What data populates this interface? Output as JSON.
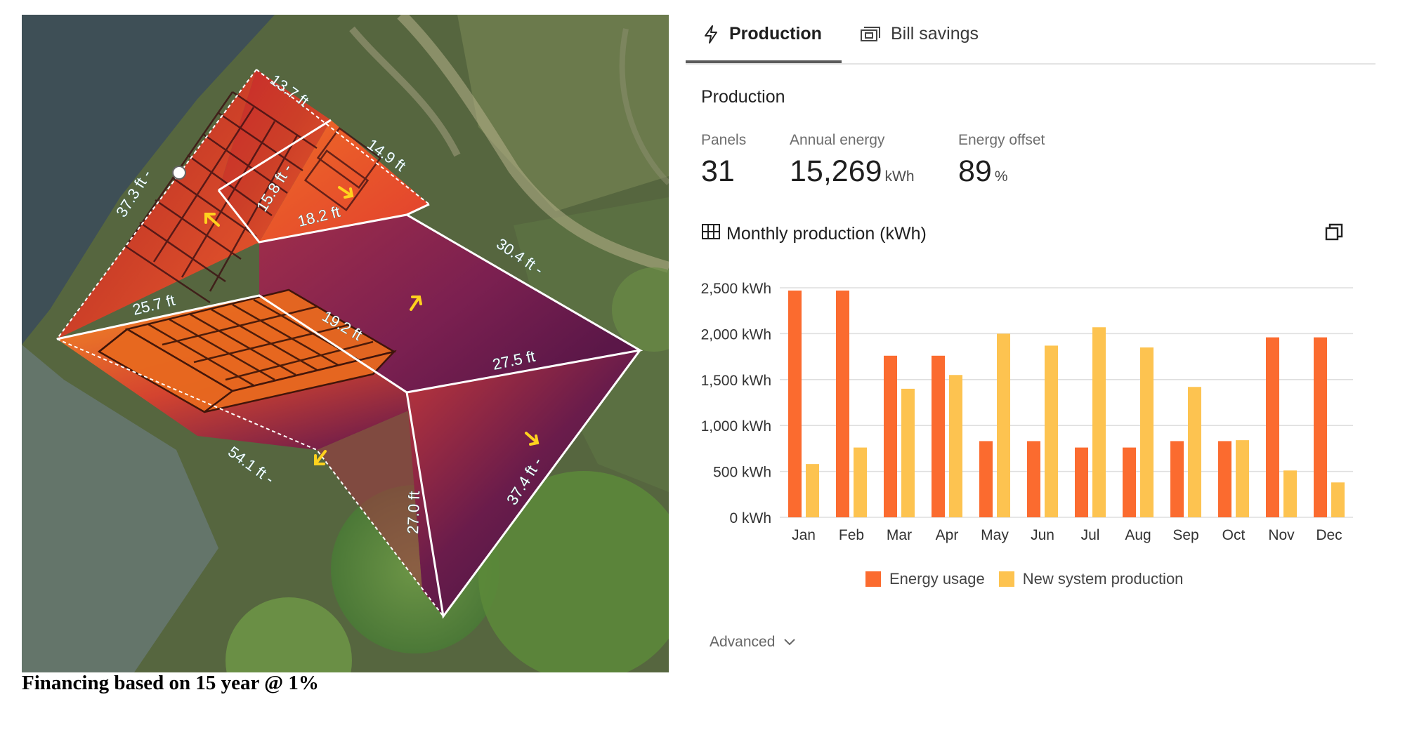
{
  "map": {
    "measurements": [
      "13.7 ft",
      "14.9 ft",
      "37.3 ft -",
      "15.8 ft -",
      "18.2 ft",
      "25.7 ft",
      "30.4 ft -",
      "19.2 ft",
      "27.5 ft",
      "54.1 ft -",
      "27.0 ft",
      "37.4 ft -"
    ]
  },
  "caption": "Financing based on 15 year @ 1%",
  "tabs": [
    {
      "label": "Production",
      "icon": "lightning-icon",
      "active": true
    },
    {
      "label": "Bill savings",
      "icon": "bill-icon",
      "active": false
    }
  ],
  "section_title": "Production",
  "stats": {
    "panels": {
      "label": "Panels",
      "value": "31"
    },
    "annual_energy": {
      "label": "Annual energy",
      "value": "15,269",
      "unit": "kWh"
    },
    "energy_offset": {
      "label": "Energy offset",
      "value": "89",
      "unit": "%"
    }
  },
  "chart_title": "Monthly production (kWh)",
  "colors": {
    "usage": "#fb6b2f",
    "production": "#fdc350",
    "grid": "#dedede",
    "axis_text": "#333333"
  },
  "chart_data": {
    "type": "bar",
    "title": "Monthly production (kWh)",
    "categories": [
      "Jan",
      "Feb",
      "Mar",
      "Apr",
      "May",
      "Jun",
      "Jul",
      "Aug",
      "Sep",
      "Oct",
      "Nov",
      "Dec"
    ],
    "series": [
      {
        "name": "Energy usage",
        "values": [
          2470,
          2470,
          1760,
          1760,
          830,
          830,
          760,
          760,
          830,
          830,
          1960,
          1960
        ]
      },
      {
        "name": "New system production",
        "values": [
          580,
          760,
          1400,
          1550,
          2000,
          1870,
          2070,
          1850,
          1420,
          840,
          510,
          380
        ]
      }
    ],
    "yticks": [
      "0 kWh",
      "500 kWh",
      "1,000 kWh",
      "1,500 kWh",
      "2,000 kWh",
      "2,500 kWh"
    ],
    "ylim": [
      0,
      2500
    ],
    "grid": true,
    "legend": "bottom"
  },
  "advanced_label": "Advanced"
}
